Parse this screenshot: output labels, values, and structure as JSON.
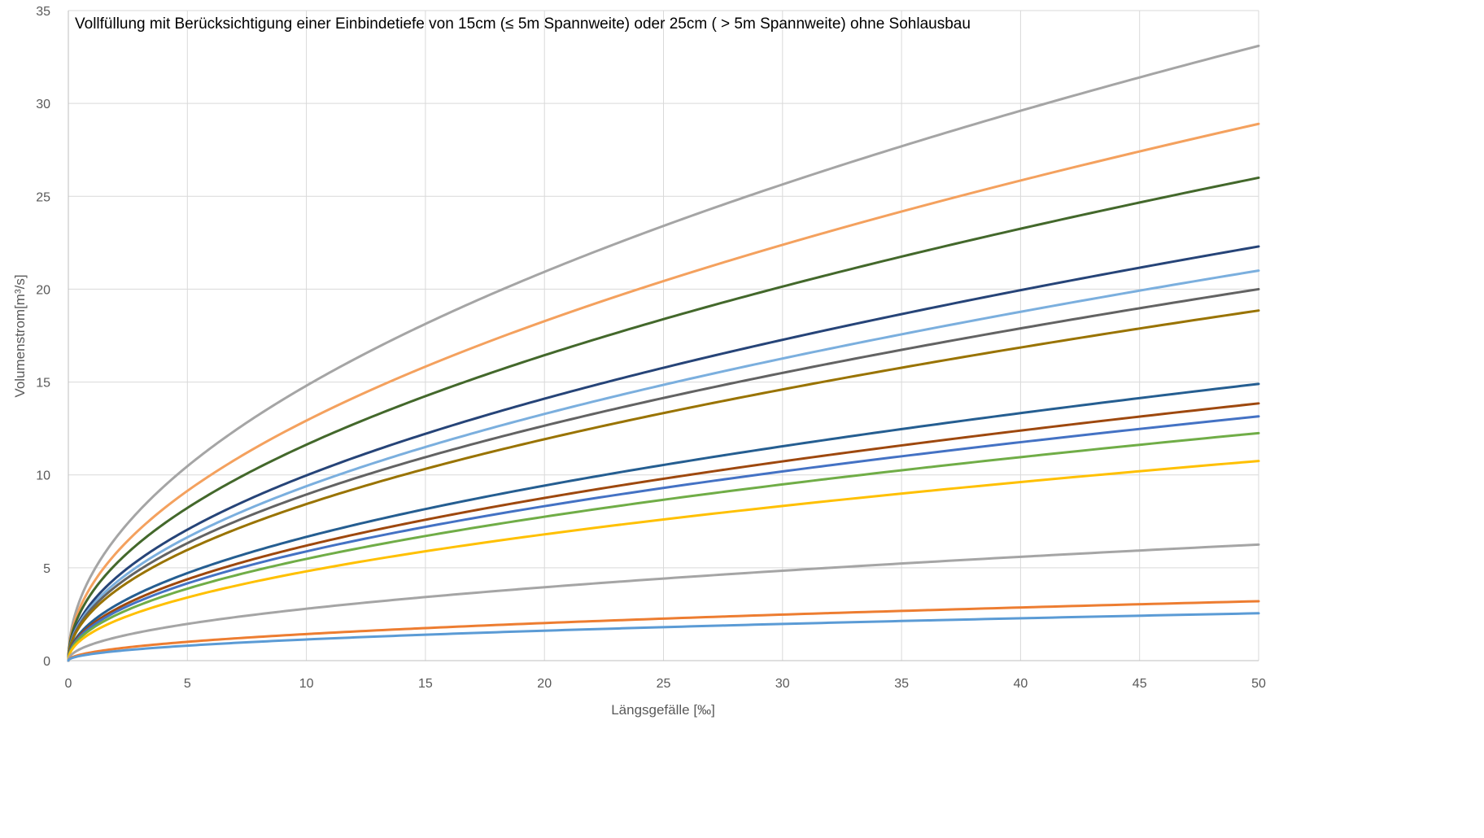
{
  "chart_data": {
    "type": "line",
    "subtitle": "Vollfüllung mit Berücksichtigung einer Einbindetiefe von 15cm (≤ 5m Spannweite) oder 25cm ( > 5m Spannweite) ohne Sohlausbau",
    "xlabel": "Längsgefälle [‰]",
    "ylabel": "Volumenstrom[m³/s]",
    "xlim": [
      0,
      50
    ],
    "ylim": [
      0,
      35
    ],
    "xticks": [
      0,
      5,
      10,
      15,
      20,
      25,
      30,
      35,
      40,
      45,
      50
    ],
    "yticks": [
      0,
      5,
      10,
      15,
      20,
      25,
      30,
      35
    ],
    "grid": true,
    "x": [
      0.1,
      0.5,
      1,
      2,
      5,
      10,
      15,
      20,
      25,
      30,
      35,
      40,
      45,
      50
    ],
    "series": [
      {
        "color": "#A5A5A5",
        "end_value": 33.1
      },
      {
        "color": "#F4A15E",
        "end_value": 28.9
      },
      {
        "color": "#43682B",
        "end_value": 26.0
      },
      {
        "color": "#264478",
        "end_value": 22.3
      },
      {
        "color": "#7BAFDE",
        "end_value": 21.0
      },
      {
        "color": "#636363",
        "end_value": 20.0
      },
      {
        "color": "#997300",
        "end_value": 18.85
      },
      {
        "color": "#255E91",
        "end_value": 14.9
      },
      {
        "color": "#9E480E",
        "end_value": 13.85
      },
      {
        "color": "#4472C4",
        "end_value": 13.15
      },
      {
        "color": "#70AD47",
        "end_value": 12.25
      },
      {
        "color": "#FFC000",
        "end_value": 10.75
      },
      {
        "color": "#A5A5A5",
        "end_value": 6.25
      },
      {
        "color": "#ED7D31",
        "end_value": 3.2
      },
      {
        "color": "#5B9BD5",
        "end_value": 2.55
      }
    ]
  }
}
